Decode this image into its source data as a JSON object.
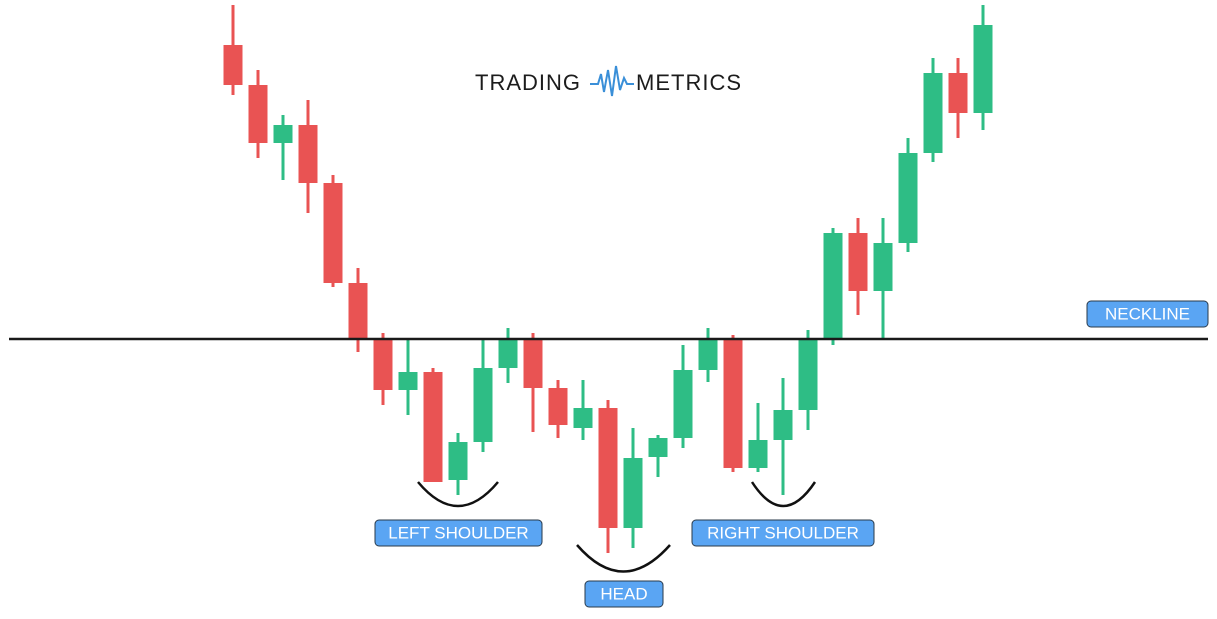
{
  "logo": {
    "left": "TRADING",
    "right": "METRICS"
  },
  "labels": {
    "neckline": "NECKLINE",
    "left_shoulder": "LEFT SHOULDER",
    "head": "HEAD",
    "right_shoulder": "RIGHT SHOULDER"
  }
}
